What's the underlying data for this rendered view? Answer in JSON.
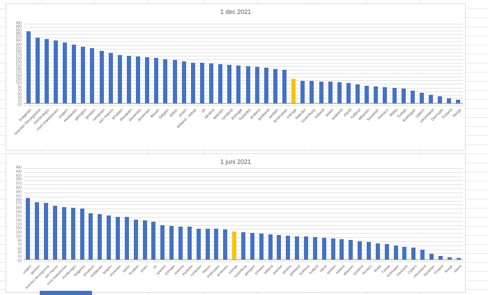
{
  "colors": {
    "bar_blue": "#4472C4",
    "bar_highlight_orange": "#FFC000",
    "chart_gridline": "#e2e2e2",
    "category_axis_line": "#a6a6a6",
    "axis_text": "#737373",
    "title_text": "#595959",
    "sheet_gridline": "#e9e9e9"
  },
  "chart_data": [
    {
      "type": "bar",
      "title": "1 dec 2021",
      "ylim": [
        -10,
        450
      ],
      "ytick_step": 20,
      "grid": true,
      "legend": "none",
      "highlight_category": "sverige",
      "yticks": [
        450,
        430,
        410,
        390,
        370,
        350,
        330,
        310,
        290,
        270,
        250,
        230,
        210,
        190,
        170,
        150,
        130,
        110,
        90,
        70,
        50,
        30,
        10,
        -10
      ],
      "categories": [
        "bulgarien",
        "bosnien herzegovina",
        "montenegro",
        "nord makedonien",
        "ungern",
        "moldavien",
        "georgien",
        "tjeckien",
        "rumänien",
        "san marino",
        "kroatien",
        "slovakien",
        "slovenien",
        "armenien",
        "litauen",
        "belgien",
        "italien",
        "polen",
        "lettland - lattvia",
        "uk",
        "ukraina",
        "spanien",
        "ryssland",
        "portugal",
        "frankrike",
        "andorra",
        "grekland",
        "serbien",
        "lichenstein",
        "sverige",
        "österike",
        "luxemburg",
        "estland",
        "sweiz",
        "tyskland",
        "irland",
        "holland",
        "albanien",
        "kazastan",
        "monaco",
        "Malta",
        "Turkiet",
        "Azerbajan",
        "cypern",
        "vitryssland",
        "Danmark",
        "Finland",
        "Norge"
      ],
      "values": [
        405,
        372,
        362,
        355,
        345,
        333,
        321,
        311,
        297,
        283,
        273,
        268,
        265,
        262,
        256,
        250,
        244,
        236,
        231,
        228,
        225,
        221,
        218,
        215,
        211,
        207,
        202,
        196,
        190,
        138,
        127,
        126,
        125,
        123,
        121,
        117,
        106,
        101,
        97,
        93,
        88,
        83,
        72,
        60,
        50,
        40,
        28,
        20
      ]
    },
    {
      "type": "bar",
      "title": "1 juni 2021",
      "ylim": [
        -10,
        450
      ],
      "ytick_step": 20,
      "grid": true,
      "legend": "none",
      "highlight_category": "sverige",
      "yticks": [
        450,
        430,
        410,
        390,
        370,
        350,
        330,
        310,
        290,
        270,
        250,
        230,
        210,
        190,
        170,
        150,
        130,
        110,
        90,
        70,
        50,
        30,
        10,
        -10
      ],
      "categories": [
        "ungern",
        "tjeckien",
        "bosnien herzegovina",
        "san marino",
        "nord makedonien",
        "montenegro",
        "bulgarien",
        "slovakien",
        "moldavien",
        "belgien",
        "slovenien",
        "italien",
        "kroatien",
        "polen",
        "uk",
        "spanien",
        "portugal",
        "andorra",
        "frankrike",
        "rumänien",
        "litauen",
        "lichenstein",
        "armenien",
        "sverige",
        "luxemburg",
        "georgien",
        "schweiz",
        "lettland",
        "österike",
        "ukraina",
        "grekland",
        "tyskland",
        "holland",
        "irland",
        "serbien",
        "estland",
        "albanien",
        "ryssland",
        "monaco",
        "Malta",
        "Turkiet",
        "Azerbajan",
        "Danmark",
        "Cypern",
        "vitryssland",
        "kazastan",
        "Finland",
        "Norge",
        "Island"
      ],
      "values": [
        303,
        281,
        277,
        263,
        258,
        253,
        251,
        226,
        222,
        215,
        211,
        209,
        197,
        193,
        185,
        167,
        164,
        162,
        161,
        153,
        151,
        150,
        148,
        138,
        133,
        130,
        128,
        125,
        122,
        118,
        115,
        112,
        110,
        107,
        104,
        100,
        95,
        90,
        85,
        80,
        75,
        70,
        63,
        57,
        50,
        28,
        18,
        12,
        8
      ]
    }
  ]
}
